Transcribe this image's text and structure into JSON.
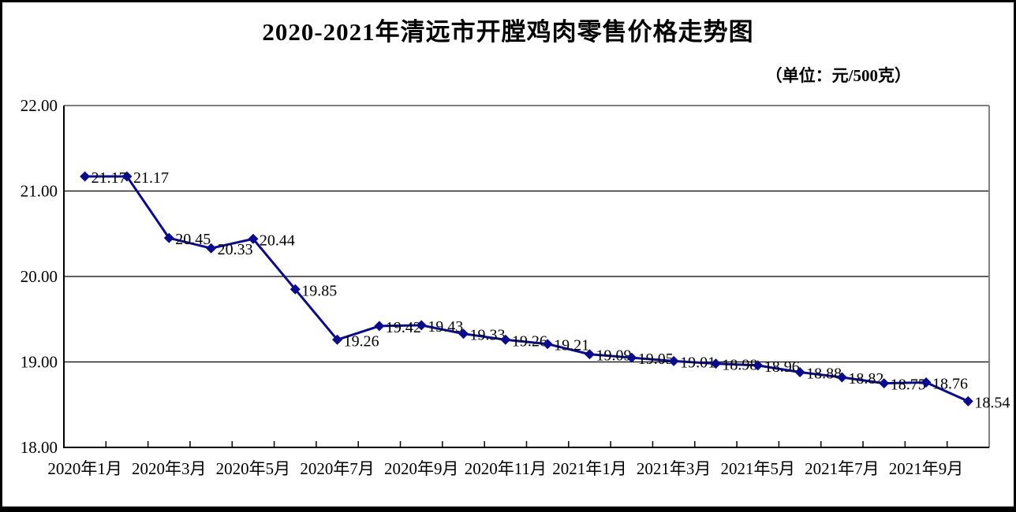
{
  "page": {
    "title": "2020-2021年清远市开膛鸡肉零售价格走势图",
    "unit_label": "（单位：元/500克）"
  },
  "chart_data": {
    "type": "line",
    "title": "2020-2021年清远市开膛鸡肉零售价格走势图",
    "subtitle": "（单位：元/500克）",
    "series": [
      {
        "name": "开膛鸡肉零售价格",
        "values": [
          21.17,
          21.17,
          20.45,
          20.33,
          20.44,
          19.85,
          19.26,
          19.42,
          19.43,
          19.33,
          19.26,
          19.21,
          19.09,
          19.05,
          19.01,
          18.98,
          18.96,
          18.88,
          18.82,
          18.75,
          18.76,
          18.54
        ]
      }
    ],
    "data_label_decimals": 2,
    "x_tick_labels": [
      "2020年1月",
      "2020年3月",
      "2020年5月",
      "2020年7月",
      "2020年9月",
      "2020年11月",
      "2021年1月",
      "2021年3月",
      "2021年5月",
      "2021年7月",
      "2021年9月"
    ],
    "x_tick_label_category_indices": [
      0,
      2,
      4,
      6,
      8,
      10,
      12,
      14,
      16,
      18,
      20
    ],
    "y_tick_labels": [
      "22.00",
      "21.00",
      "20.00",
      "19.00",
      "18.00"
    ],
    "ylim": [
      18,
      22
    ],
    "y_step": 1,
    "grid": "horizontal",
    "legend_position": "none",
    "colors": {
      "line": "#0A0A8C",
      "marker": "#0A0A8C",
      "gridline": "#000000",
      "axis": "#000000",
      "plot_border": "#808080",
      "text": "#000000"
    },
    "marker": "diamond"
  }
}
